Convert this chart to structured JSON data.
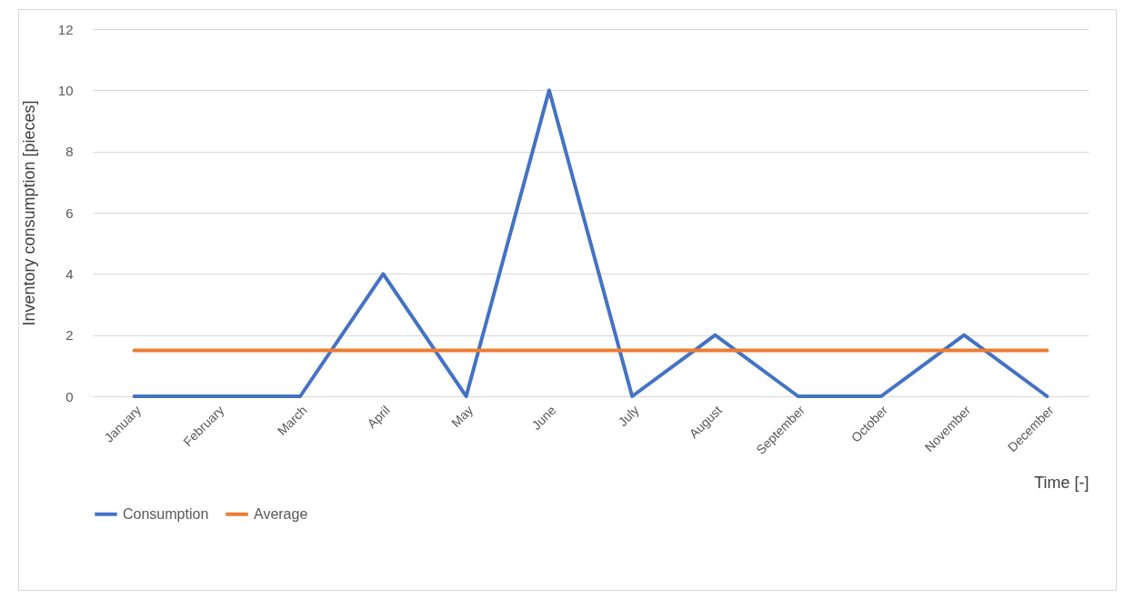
{
  "chart_data": {
    "type": "line",
    "xlabel": "Time [-]",
    "ylabel": "Inventory consumption [pieces]",
    "categories": [
      "January",
      "February",
      "March",
      "April",
      "May",
      "June",
      "July",
      "August",
      "September",
      "October",
      "November",
      "December"
    ],
    "series": [
      {
        "name": "Consumption",
        "color": "#4472c4",
        "values": [
          0,
          0,
          0,
          4,
          0,
          10,
          0,
          2,
          0,
          0,
          2,
          0
        ]
      },
      {
        "name": "Average",
        "color": "#ed7d31",
        "values": [
          1.5,
          1.5,
          1.5,
          1.5,
          1.5,
          1.5,
          1.5,
          1.5,
          1.5,
          1.5,
          1.5,
          1.5
        ]
      }
    ],
    "ylim": [
      0,
      12
    ],
    "yticks": [
      0,
      2,
      4,
      6,
      8,
      10,
      12
    ],
    "grid": "y",
    "legend": "bottom",
    "marker": "none",
    "line_style": "solid"
  }
}
